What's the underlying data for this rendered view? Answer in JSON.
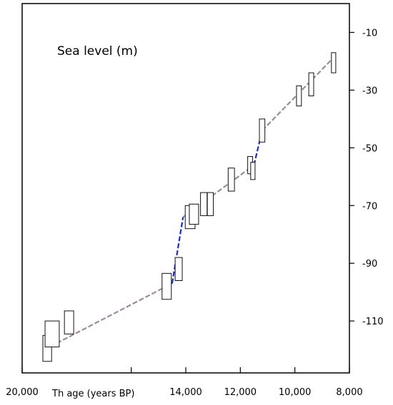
{
  "chart_data": {
    "type": "scatter",
    "title": "Sea level (m)",
    "xlabel": "Th age (years BP)",
    "ylabel": "",
    "xlim": [
      20000,
      8000
    ],
    "ylim": [
      -128,
      0
    ],
    "x_ticks": [
      20000,
      16000,
      14000,
      12000,
      10000,
      8000
    ],
    "x_tick_labels": [
      "20,000",
      "",
      "14,000",
      "12,000",
      "10,000",
      "8,000"
    ],
    "y_ticks": [
      -10,
      -30,
      -50,
      -70,
      -90,
      -110
    ],
    "y_tick_labels": [
      "-10",
      "-30",
      "-50",
      "-70",
      "-90",
      "-110"
    ],
    "y_axis_side": "right",
    "grid": false,
    "series": [
      {
        "role": "gradual-trend",
        "color": "#9a8a9a",
        "style": "dashed",
        "points": [
          [
            19200,
            -120
          ],
          [
            14500,
            -97
          ]
        ]
      },
      {
        "role": "rapid-rise",
        "color": "#1a2ecc",
        "style": "dashed",
        "points": [
          [
            14500,
            -97
          ],
          [
            14100,
            -74
          ]
        ]
      },
      {
        "role": "gradual-trend",
        "color": "#9a8a9a",
        "style": "dashed",
        "points": [
          [
            14100,
            -74
          ],
          [
            11500,
            -56
          ]
        ]
      },
      {
        "role": "rapid-rise",
        "color": "#1a2ecc",
        "style": "dashed",
        "points": [
          [
            11500,
            -56
          ],
          [
            11200,
            -44
          ]
        ]
      },
      {
        "role": "gradual-trend",
        "color": "#9a8a9a",
        "style": "dashed",
        "points": [
          [
            11200,
            -44
          ],
          [
            8500,
            -18
          ]
        ]
      }
    ],
    "boxes": [
      {
        "x": 19080,
        "y": -119.5,
        "dx": 320,
        "dy": 4.5
      },
      {
        "x": 18900,
        "y": -114.5,
        "dx": 520,
        "dy": 4.5
      },
      {
        "x": 18280,
        "y": -110.5,
        "dx": 340,
        "dy": 4.0
      },
      {
        "x": 14700,
        "y": -98.0,
        "dx": 340,
        "dy": 4.5
      },
      {
        "x": 14260,
        "y": -92.0,
        "dx": 260,
        "dy": 4.0
      },
      {
        "x": 13840,
        "y": -74.0,
        "dx": 360,
        "dy": 4.0
      },
      {
        "x": 13700,
        "y": -73.0,
        "dx": 340,
        "dy": 3.5
      },
      {
        "x": 13340,
        "y": -69.5,
        "dx": 240,
        "dy": 4.0
      },
      {
        "x": 13100,
        "y": -69.5,
        "dx": 220,
        "dy": 4.0
      },
      {
        "x": 12330,
        "y": -61.0,
        "dx": 230,
        "dy": 4.0
      },
      {
        "x": 11640,
        "y": -56.0,
        "dx": 180,
        "dy": 3.0
      },
      {
        "x": 11540,
        "y": -58.0,
        "dx": 160,
        "dy": 3.0
      },
      {
        "x": 11200,
        "y": -44.0,
        "dx": 200,
        "dy": 4.0
      },
      {
        "x": 9850,
        "y": -32.0,
        "dx": 180,
        "dy": 3.5
      },
      {
        "x": 9400,
        "y": -28.0,
        "dx": 180,
        "dy": 4.0
      },
      {
        "x": 8580,
        "y": -20.5,
        "dx": 160,
        "dy": 3.5
      }
    ]
  }
}
